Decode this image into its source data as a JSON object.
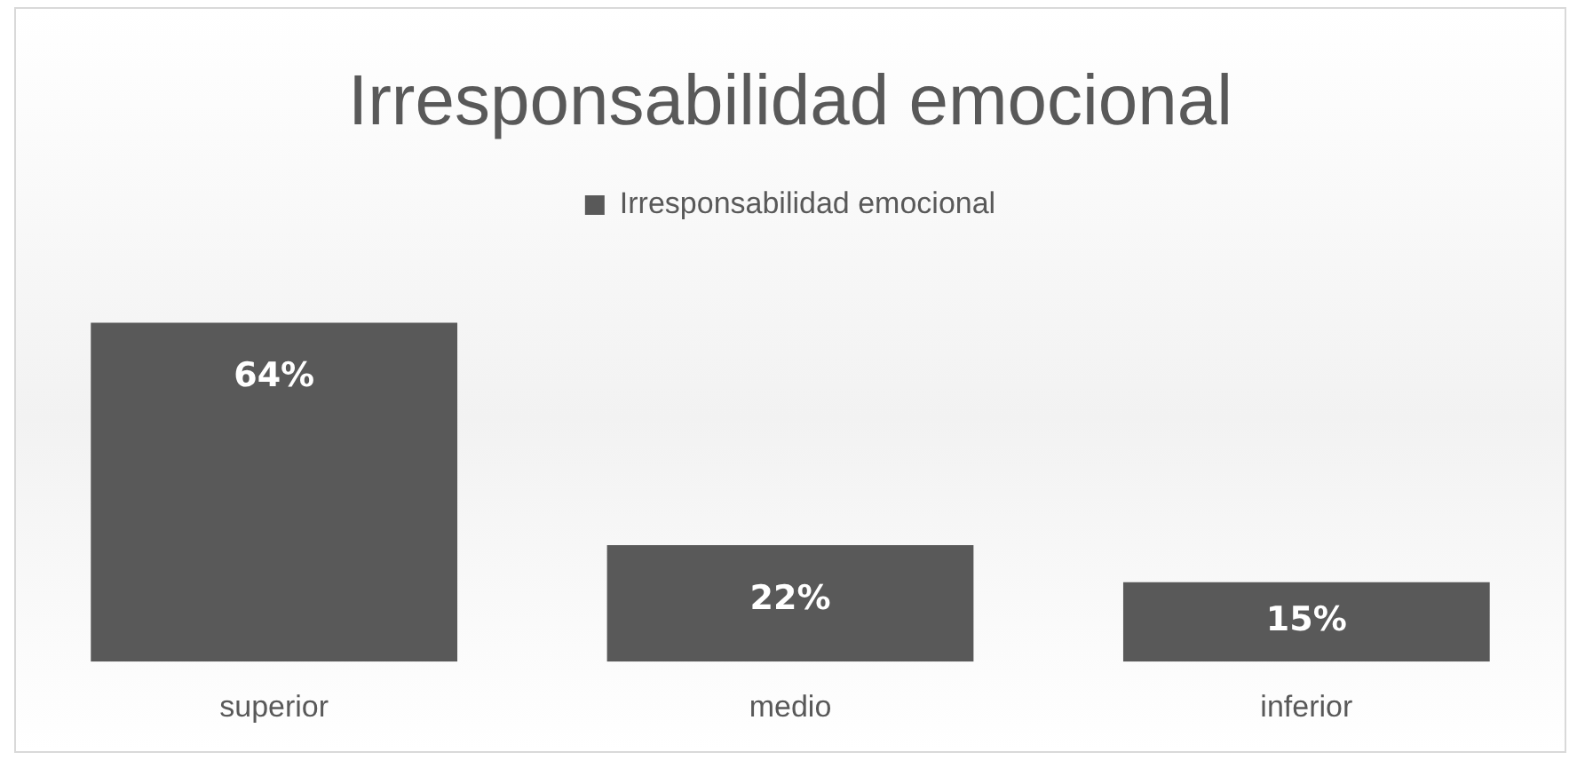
{
  "chart_data": {
    "type": "bar",
    "title": "Irresponsabilidad emocional",
    "categories": [
      "superior",
      "medio",
      "inferior"
    ],
    "series": [
      {
        "name": "Irresponsabilidad emocional",
        "color": "#595959",
        "values": [
          64,
          22,
          15
        ],
        "value_labels": [
          "64%",
          "22%",
          "15%"
        ]
      }
    ],
    "legend": "top",
    "grid": false
  }
}
